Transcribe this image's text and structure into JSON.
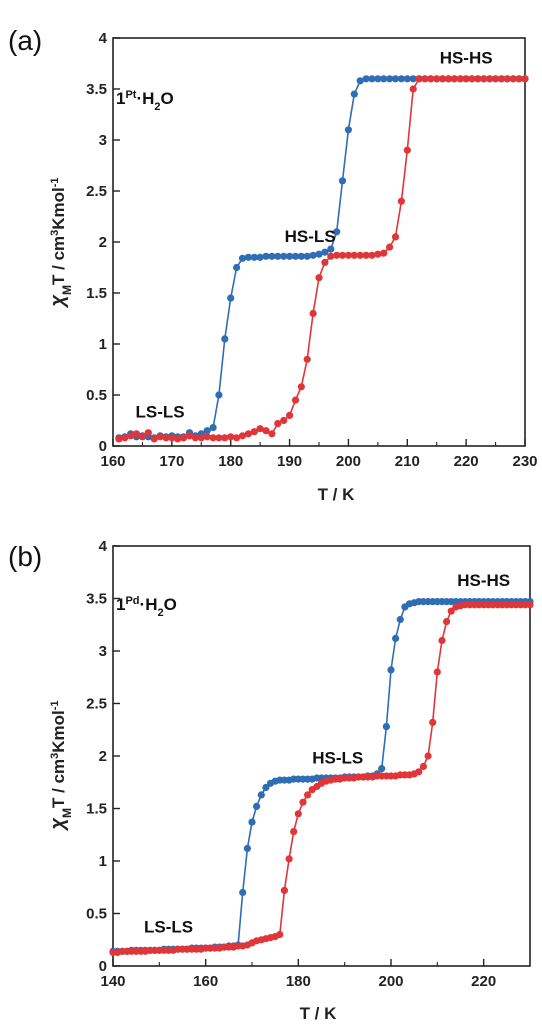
{
  "colors": {
    "cooling": "#2f6db5",
    "heating": "#e0363a",
    "axis": "#222222"
  },
  "chart_data": [
    {
      "type": "scatter",
      "panel_label": "(a)",
      "compound": {
        "prefix": "1",
        "sup": "Pt",
        "suffix": "·H",
        "sub": "2",
        "end": "O"
      },
      "xlabel": "T / K",
      "ylabel": {
        "chi": "χ",
        "sub": "M",
        "mid": "T / cm",
        "sup3": "3",
        "tail": "Kmol",
        "supm": "-1"
      },
      "xlim": [
        160,
        230
      ],
      "ylim": [
        0,
        4
      ],
      "xticks": [
        160,
        170,
        180,
        190,
        200,
        210,
        220,
        230
      ],
      "yticks": [
        0,
        0.5,
        1,
        1.5,
        2,
        2.5,
        3,
        3.5,
        4
      ],
      "annotations": [
        {
          "text": "LS-LS",
          "x": 168,
          "y": 0.28
        },
        {
          "text": "HS-LS",
          "x": 193.5,
          "y": 2.0
        },
        {
          "text": "HS-HS",
          "x": 220,
          "y": 3.75
        }
      ],
      "series": [
        {
          "color_key": "cooling",
          "x": [
            161,
            162,
            163,
            164,
            165,
            166,
            167,
            168,
            169,
            170,
            171,
            172,
            173,
            174,
            175,
            176,
            177,
            178,
            179,
            180,
            181,
            182,
            183,
            184,
            185,
            186,
            187,
            188,
            189,
            190,
            191,
            192,
            193,
            194,
            195,
            196,
            197,
            198,
            199,
            200,
            201,
            202,
            203,
            204,
            205,
            206,
            207,
            208,
            209,
            210,
            211,
            212,
            213,
            214,
            215,
            216,
            217,
            218,
            219,
            220,
            221,
            222,
            223,
            224,
            225,
            226,
            227,
            228,
            229,
            230
          ],
          "y": [
            0.08,
            0.09,
            0.12,
            0.09,
            0.1,
            0.09,
            0.08,
            0.1,
            0.09,
            0.1,
            0.09,
            0.09,
            0.13,
            0.1,
            0.12,
            0.15,
            0.18,
            0.5,
            1.05,
            1.45,
            1.75,
            1.84,
            1.85,
            1.85,
            1.85,
            1.86,
            1.86,
            1.86,
            1.86,
            1.86,
            1.86,
            1.86,
            1.86,
            1.87,
            1.88,
            1.9,
            1.93,
            2.1,
            2.6,
            3.1,
            3.45,
            3.58,
            3.6,
            3.6,
            3.6,
            3.6,
            3.6,
            3.6,
            3.6,
            3.6,
            3.6,
            3.6,
            3.6,
            3.6,
            3.6,
            3.6,
            3.6,
            3.6,
            3.6,
            3.6,
            3.6,
            3.6,
            3.6,
            3.6,
            3.6,
            3.6,
            3.6,
            3.6,
            3.6,
            3.6
          ]
        },
        {
          "color_key": "heating",
          "x": [
            161,
            162,
            163,
            164,
            165,
            166,
            167,
            168,
            169,
            170,
            171,
            172,
            173,
            174,
            175,
            176,
            177,
            178,
            179,
            180,
            181,
            182,
            183,
            184,
            185,
            186,
            187,
            188,
            189,
            190,
            191,
            192,
            193,
            194,
            195,
            196,
            197,
            198,
            199,
            200,
            201,
            202,
            203,
            204,
            205,
            206,
            207,
            208,
            209,
            210,
            211,
            212,
            213,
            214,
            215,
            216,
            217,
            218,
            219,
            220,
            221,
            222,
            223,
            224,
            225,
            226,
            227,
            228,
            229,
            230
          ],
          "y": [
            0.07,
            0.08,
            0.1,
            0.12,
            0.09,
            0.13,
            0.07,
            0.09,
            0.08,
            0.08,
            0.07,
            0.08,
            0.1,
            0.08,
            0.08,
            0.09,
            0.08,
            0.08,
            0.08,
            0.09,
            0.08,
            0.1,
            0.12,
            0.14,
            0.17,
            0.15,
            0.12,
            0.22,
            0.25,
            0.3,
            0.45,
            0.58,
            0.85,
            1.3,
            1.65,
            1.8,
            1.86,
            1.87,
            1.87,
            1.87,
            1.87,
            1.87,
            1.87,
            1.87,
            1.88,
            1.89,
            1.95,
            2.05,
            2.4,
            2.9,
            3.5,
            3.6,
            3.6,
            3.6,
            3.6,
            3.6,
            3.6,
            3.6,
            3.6,
            3.6,
            3.6,
            3.6,
            3.6,
            3.6,
            3.6,
            3.6,
            3.6,
            3.6,
            3.6,
            3.6
          ]
        }
      ]
    },
    {
      "type": "scatter",
      "panel_label": "(b)",
      "compound": {
        "prefix": "1",
        "sup": "Pd",
        "suffix": "·H",
        "sub": "2",
        "end": "O"
      },
      "xlabel": "T / K",
      "ylabel": {
        "chi": "χ",
        "sub": "M",
        "mid": "T / cm",
        "sup3": "3",
        "tail": "Kmol",
        "supm": "-1"
      },
      "xlim": [
        140,
        230
      ],
      "ylim": [
        0,
        4
      ],
      "xticks": [
        140,
        160,
        180,
        200,
        220
      ],
      "yticks": [
        0,
        0.5,
        1,
        1.5,
        2,
        2.5,
        3,
        3.5,
        4
      ],
      "annotations": [
        {
          "text": "LS-LS",
          "x": 152,
          "y": 0.32
        },
        {
          "text": "HS-LS",
          "x": 188.5,
          "y": 1.93
        },
        {
          "text": "HS-HS",
          "x": 220,
          "y": 3.62
        }
      ],
      "series": [
        {
          "color_key": "cooling",
          "x": [
            140,
            141,
            142,
            143,
            144,
            145,
            146,
            147,
            148,
            149,
            150,
            151,
            152,
            153,
            154,
            155,
            156,
            157,
            158,
            159,
            160,
            161,
            162,
            163,
            164,
            165,
            166,
            167,
            168,
            169,
            170,
            171,
            172,
            173,
            174,
            175,
            176,
            177,
            178,
            179,
            180,
            181,
            182,
            183,
            184,
            185,
            186,
            187,
            188,
            189,
            190,
            191,
            192,
            193,
            194,
            195,
            196,
            197,
            198,
            199,
            200,
            201,
            202,
            203,
            204,
            205,
            206,
            207,
            208,
            209,
            210,
            211,
            212,
            213,
            214,
            215,
            216,
            217,
            218,
            219,
            220,
            221,
            222,
            223,
            224,
            225,
            226,
            227,
            228,
            229,
            230
          ],
          "y": [
            0.14,
            0.14,
            0.14,
            0.14,
            0.15,
            0.15,
            0.15,
            0.15,
            0.15,
            0.15,
            0.15,
            0.16,
            0.16,
            0.16,
            0.16,
            0.16,
            0.16,
            0.17,
            0.17,
            0.17,
            0.17,
            0.17,
            0.18,
            0.18,
            0.18,
            0.19,
            0.19,
            0.2,
            0.7,
            1.12,
            1.37,
            1.52,
            1.63,
            1.7,
            1.74,
            1.76,
            1.77,
            1.77,
            1.77,
            1.78,
            1.78,
            1.78,
            1.78,
            1.78,
            1.79,
            1.79,
            1.79,
            1.79,
            1.79,
            1.79,
            1.8,
            1.8,
            1.8,
            1.8,
            1.8,
            1.81,
            1.81,
            1.83,
            1.88,
            2.28,
            2.82,
            3.12,
            3.3,
            3.42,
            3.45,
            3.46,
            3.47,
            3.47,
            3.47,
            3.47,
            3.47,
            3.47,
            3.47,
            3.47,
            3.47,
            3.47,
            3.47,
            3.47,
            3.47,
            3.47,
            3.47,
            3.47,
            3.47,
            3.47,
            3.47,
            3.47,
            3.47,
            3.47,
            3.47,
            3.47,
            3.47
          ]
        },
        {
          "color_key": "heating",
          "x": [
            140,
            141,
            142,
            143,
            144,
            145,
            146,
            147,
            148,
            149,
            150,
            151,
            152,
            153,
            154,
            155,
            156,
            157,
            158,
            159,
            160,
            161,
            162,
            163,
            164,
            165,
            166,
            167,
            168,
            169,
            170,
            171,
            172,
            173,
            174,
            175,
            176,
            177,
            178,
            179,
            180,
            181,
            182,
            183,
            184,
            185,
            186,
            187,
            188,
            189,
            190,
            191,
            192,
            193,
            194,
            195,
            196,
            197,
            198,
            199,
            200,
            201,
            202,
            203,
            204,
            205,
            206,
            207,
            208,
            209,
            210,
            211,
            212,
            213,
            214,
            215,
            216,
            217,
            218,
            219,
            220,
            221,
            222,
            223,
            224,
            225,
            226,
            227,
            228,
            229,
            230
          ],
          "y": [
            0.13,
            0.13,
            0.14,
            0.14,
            0.14,
            0.14,
            0.14,
            0.14,
            0.15,
            0.15,
            0.15,
            0.15,
            0.15,
            0.15,
            0.16,
            0.16,
            0.16,
            0.16,
            0.16,
            0.16,
            0.17,
            0.17,
            0.17,
            0.17,
            0.18,
            0.18,
            0.18,
            0.19,
            0.19,
            0.2,
            0.22,
            0.24,
            0.25,
            0.26,
            0.27,
            0.28,
            0.3,
            0.72,
            1.02,
            1.28,
            1.45,
            1.56,
            1.63,
            1.68,
            1.71,
            1.74,
            1.76,
            1.77,
            1.78,
            1.78,
            1.79,
            1.79,
            1.79,
            1.8,
            1.8,
            1.8,
            1.8,
            1.81,
            1.81,
            1.81,
            1.81,
            1.81,
            1.82,
            1.82,
            1.82,
            1.83,
            1.85,
            1.9,
            2.0,
            2.32,
            2.8,
            3.1,
            3.28,
            3.38,
            3.42,
            3.43,
            3.44,
            3.44,
            3.44,
            3.44,
            3.44,
            3.44,
            3.44,
            3.44,
            3.44,
            3.44,
            3.44,
            3.44,
            3.44,
            3.44,
            3.44
          ]
        }
      ]
    }
  ]
}
